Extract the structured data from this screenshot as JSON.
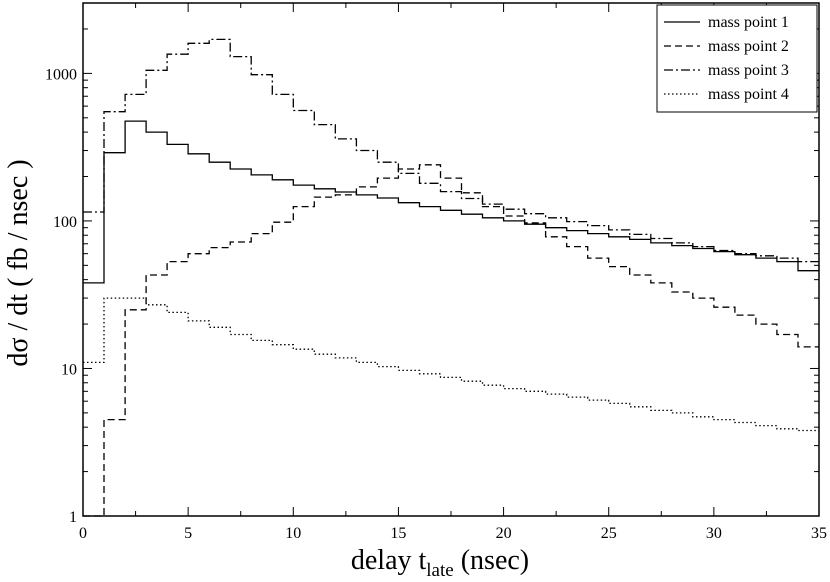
{
  "chart_data": {
    "type": "line",
    "title": "",
    "xlabel_main": "delay t",
    "xlabel_sub": "late",
    "xlabel_unit": " (nsec)",
    "ylabel": "dσ / dt ( fb / nsec )",
    "xlim": [
      0,
      35
    ],
    "ylim": [
      1,
      3000
    ],
    "yscale": "log",
    "grid": false,
    "legend_position": "top-right",
    "x_ticks": [
      0,
      5,
      10,
      15,
      20,
      25,
      30,
      35
    ],
    "x_tick_labels": [
      "0",
      "5",
      "10",
      "15",
      "20",
      "25",
      "30",
      "35"
    ],
    "y_ticks": [
      1,
      10,
      100,
      1000
    ],
    "y_tick_labels": [
      "1",
      "10",
      "100",
      "1000"
    ],
    "bin_edges": [
      0,
      1,
      2,
      3,
      4,
      5,
      6,
      7,
      8,
      9,
      10,
      11,
      12,
      13,
      14,
      15,
      16,
      17,
      18,
      19,
      20,
      21,
      22,
      23,
      24,
      25,
      26,
      27,
      28,
      29,
      30,
      31,
      32,
      33,
      34,
      35
    ],
    "series": [
      {
        "name": "mass point 1",
        "style": "solid",
        "values": [
          38,
          290,
          475,
          400,
          330,
          285,
          250,
          225,
          205,
          190,
          175,
          165,
          157,
          150,
          143,
          133,
          125,
          118,
          111,
          105,
          100,
          95,
          90,
          86,
          82,
          78,
          75,
          71,
          68,
          65,
          62,
          59,
          56,
          53,
          46
        ]
      },
      {
        "name": "mass point 2",
        "style": "dashed",
        "values": [
          1,
          4.5,
          25,
          43,
          53,
          60,
          66,
          72,
          82,
          98,
          125,
          145,
          150,
          170,
          195,
          225,
          240,
          195,
          155,
          125,
          108,
          97,
          78,
          67,
          56,
          49,
          43,
          38,
          33,
          30,
          26,
          23,
          20,
          17,
          14
        ]
      },
      {
        "name": "mass point 3",
        "style": "dashdot",
        "values": [
          115,
          550,
          720,
          1050,
          1350,
          1600,
          1700,
          1300,
          980,
          720,
          560,
          450,
          360,
          300,
          250,
          210,
          180,
          158,
          142,
          130,
          120,
          112,
          105,
          99,
          93,
          87,
          81,
          76,
          71,
          67,
          63,
          60,
          58,
          56,
          53
        ]
      },
      {
        "name": "mass point 4",
        "style": "dotted",
        "values": [
          11,
          30,
          30,
          27,
          24,
          21,
          19,
          17,
          15.5,
          14.5,
          13.5,
          12.5,
          11.8,
          11,
          10.3,
          9.7,
          9.2,
          8.7,
          8.2,
          7.7,
          7.3,
          7,
          6.7,
          6.4,
          6.1,
          5.8,
          5.5,
          5.2,
          5,
          4.7,
          4.5,
          4.3,
          4.1,
          3.9,
          3.8
        ]
      }
    ]
  }
}
